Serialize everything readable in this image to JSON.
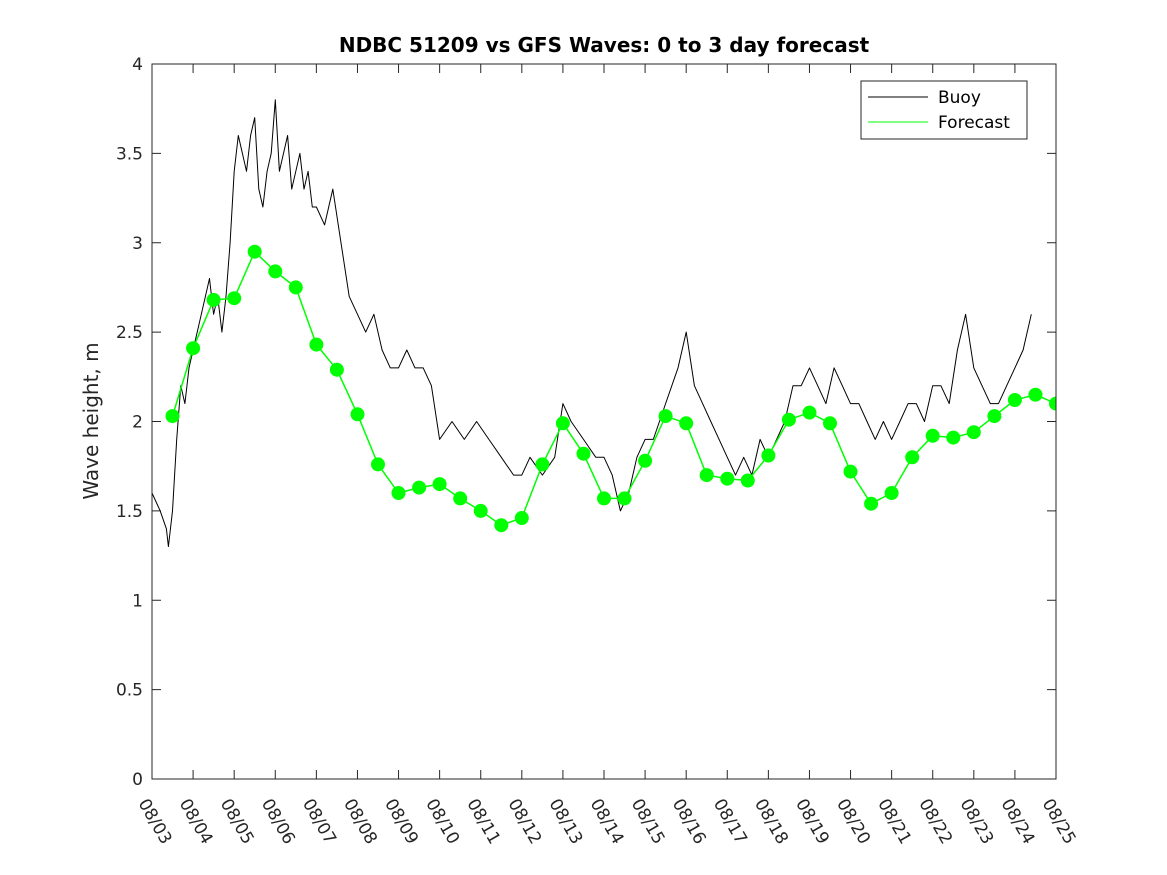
{
  "chart_data": {
    "type": "line",
    "title": "NDBC 51209 vs GFS Waves: 0 to 3 day forecast",
    "xlabel": "",
    "ylabel": "Wave height, m",
    "xlim": [
      0,
      22
    ],
    "ylim": [
      0,
      4
    ],
    "grid": false,
    "legend_location": "top-right",
    "x_ticks": [
      {
        "value": 0,
        "label": "08/03"
      },
      {
        "value": 1,
        "label": "08/04"
      },
      {
        "value": 2,
        "label": "08/05"
      },
      {
        "value": 3,
        "label": "08/06"
      },
      {
        "value": 4,
        "label": "08/07"
      },
      {
        "value": 5,
        "label": "08/08"
      },
      {
        "value": 6,
        "label": "08/09"
      },
      {
        "value": 7,
        "label": "08/10"
      },
      {
        "value": 8,
        "label": "08/11"
      },
      {
        "value": 9,
        "label": "08/12"
      },
      {
        "value": 10,
        "label": "08/13"
      },
      {
        "value": 11,
        "label": "08/14"
      },
      {
        "value": 12,
        "label": "08/15"
      },
      {
        "value": 13,
        "label": "08/16"
      },
      {
        "value": 14,
        "label": "08/17"
      },
      {
        "value": 15,
        "label": "08/18"
      },
      {
        "value": 16,
        "label": "08/19"
      },
      {
        "value": 17,
        "label": "08/20"
      },
      {
        "value": 18,
        "label": "08/21"
      },
      {
        "value": 19,
        "label": "08/22"
      },
      {
        "value": 20,
        "label": "08/23"
      },
      {
        "value": 21,
        "label": "08/24"
      },
      {
        "value": 22,
        "label": "08/25"
      }
    ],
    "y_ticks": [
      {
        "value": 0,
        "label": "0"
      },
      {
        "value": 0.5,
        "label": "0.5"
      },
      {
        "value": 1,
        "label": "1"
      },
      {
        "value": 1.5,
        "label": "1.5"
      },
      {
        "value": 2,
        "label": "2"
      },
      {
        "value": 2.5,
        "label": "2.5"
      },
      {
        "value": 3,
        "label": "3"
      },
      {
        "value": 3.5,
        "label": "3.5"
      },
      {
        "value": 4,
        "label": "4"
      }
    ],
    "legend": [
      {
        "name": "Buoy",
        "color": "#000000"
      },
      {
        "name": "Forecast",
        "color": "#00ff00"
      }
    ],
    "series": [
      {
        "name": "Buoy",
        "color": "#000000",
        "x": [
          0,
          0.2,
          0.35,
          0.4,
          0.5,
          0.6,
          0.7,
          0.8,
          0.9,
          1.0,
          1.1,
          1.2,
          1.3,
          1.4,
          1.5,
          1.6,
          1.7,
          1.8,
          1.9,
          2.0,
          2.1,
          2.2,
          2.3,
          2.4,
          2.5,
          2.6,
          2.7,
          2.8,
          2.9,
          3.0,
          3.1,
          3.2,
          3.3,
          3.4,
          3.5,
          3.6,
          3.7,
          3.8,
          3.9,
          4.0,
          4.2,
          4.4,
          4.6,
          4.8,
          5.0,
          5.2,
          5.4,
          5.6,
          5.8,
          6.0,
          6.2,
          6.4,
          6.6,
          6.8,
          7.0,
          7.3,
          7.6,
          7.9,
          8.2,
          8.5,
          8.8,
          9.0,
          9.2,
          9.5,
          9.8,
          10.0,
          10.2,
          10.5,
          10.8,
          11.0,
          11.2,
          11.4,
          11.6,
          11.8,
          12.0,
          12.2,
          12.5,
          12.8,
          13.0,
          13.2,
          13.4,
          13.6,
          13.8,
          14.0,
          14.2,
          14.4,
          14.6,
          14.8,
          15.0,
          15.2,
          15.4,
          15.6,
          15.8,
          16.0,
          16.2,
          16.4,
          16.6,
          16.8,
          17.0,
          17.2,
          17.4,
          17.6,
          17.8,
          18.0,
          18.2,
          18.4,
          18.6,
          18.8,
          19.0,
          19.2,
          19.4,
          19.6,
          19.8,
          20.0,
          20.2,
          20.4,
          20.6,
          20.8,
          21.0,
          21.2,
          21.4
        ],
        "values": [
          1.6,
          1.5,
          1.4,
          1.3,
          1.5,
          1.9,
          2.2,
          2.1,
          2.3,
          2.4,
          2.5,
          2.6,
          2.7,
          2.8,
          2.6,
          2.7,
          2.5,
          2.7,
          3.0,
          3.4,
          3.6,
          3.5,
          3.4,
          3.6,
          3.7,
          3.3,
          3.2,
          3.4,
          3.5,
          3.8,
          3.4,
          3.5,
          3.6,
          3.3,
          3.4,
          3.5,
          3.3,
          3.4,
          3.2,
          3.2,
          3.1,
          3.3,
          3.0,
          2.7,
          2.6,
          2.5,
          2.6,
          2.4,
          2.3,
          2.3,
          2.4,
          2.3,
          2.3,
          2.2,
          1.9,
          2.0,
          1.9,
          2.0,
          1.9,
          1.8,
          1.7,
          1.7,
          1.8,
          1.7,
          1.8,
          2.1,
          2.0,
          1.9,
          1.8,
          1.8,
          1.7,
          1.5,
          1.6,
          1.8,
          1.9,
          1.9,
          2.1,
          2.3,
          2.5,
          2.2,
          2.1,
          2.0,
          1.9,
          1.8,
          1.7,
          1.8,
          1.7,
          1.9,
          1.8,
          1.9,
          2.0,
          2.2,
          2.2,
          2.3,
          2.2,
          2.1,
          2.3,
          2.2,
          2.1,
          2.1,
          2.0,
          1.9,
          2.0,
          1.9,
          2.0,
          2.1,
          2.1,
          2.0,
          2.2,
          2.2,
          2.1,
          2.4,
          2.6,
          2.3,
          2.2,
          2.1,
          2.1,
          2.2,
          2.3,
          2.4,
          2.6
        ]
      },
      {
        "name": "Forecast",
        "color": "#00ff00",
        "x": [
          0.5,
          1.0,
          1.5,
          2.0,
          2.5,
          3.0,
          3.5,
          4.0,
          4.5,
          5.0,
          5.5,
          6.0,
          6.5,
          7.0,
          7.5,
          8.0,
          8.5,
          9.0,
          9.5,
          10.0,
          10.5,
          11.0,
          11.5,
          12.0,
          12.5,
          13.0,
          13.5,
          14.0,
          14.5,
          15.0,
          15.5,
          16.0,
          16.5,
          17.0,
          17.5,
          18.0,
          18.5,
          19.0,
          19.5,
          20.0,
          20.5,
          21.0,
          21.5,
          22.0
        ],
        "values": [
          2.03,
          2.41,
          2.68,
          2.69,
          2.95,
          2.84,
          2.75,
          2.43,
          2.29,
          2.04,
          1.76,
          1.6,
          1.63,
          1.65,
          1.57,
          1.5,
          1.42,
          1.46,
          1.76,
          1.99,
          1.82,
          1.57,
          1.57,
          1.78,
          2.03,
          1.99,
          1.7,
          1.68,
          1.67,
          1.81,
          2.01,
          2.05,
          1.99,
          1.72,
          1.54,
          1.6,
          1.8,
          1.92,
          1.91,
          1.94,
          2.03,
          2.12,
          2.15,
          2.1
        ]
      }
    ]
  }
}
